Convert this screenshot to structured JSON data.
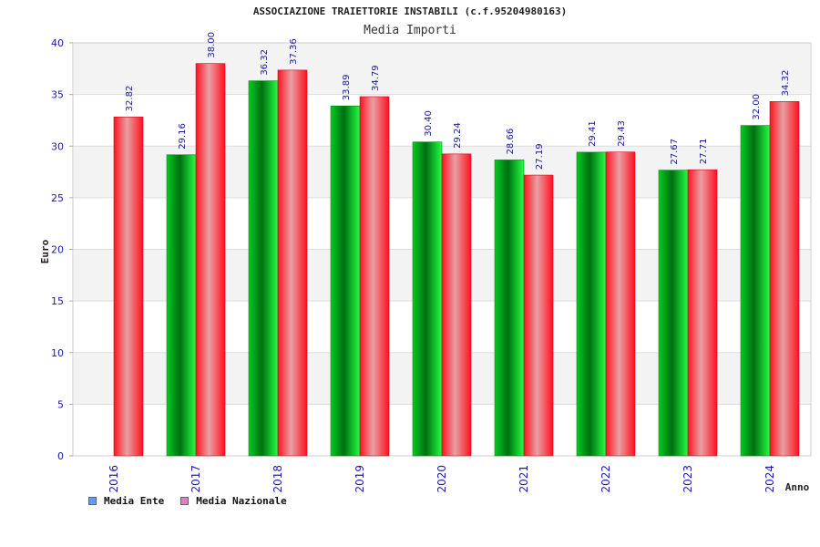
{
  "chart_data": {
    "type": "bar",
    "title": "ASSOCIAZIONE TRAIETTORIE INSTABILI (c.f.95204980163)",
    "subtitle": "Media Importi",
    "xlabel": "Anno",
    "ylabel": "Euro",
    "ylim": [
      0,
      40
    ],
    "yticks": [
      "0",
      "5",
      "10",
      "15",
      "20",
      "25",
      "30",
      "35",
      "40"
    ],
    "grid": true,
    "legend_position": "bottom-left",
    "categories": [
      "2016",
      "2017",
      "2018",
      "2019",
      "2020",
      "2021",
      "2022",
      "2023",
      "2024"
    ],
    "series": [
      {
        "name": "Media Ente",
        "color": "#00c21e",
        "legend_color": "#5fa0e8",
        "values": [
          null,
          29.16,
          36.32,
          33.89,
          30.4,
          28.66,
          29.41,
          27.67,
          32.0
        ],
        "labels": [
          "",
          "29.16",
          "36.32",
          "33.89",
          "30.40",
          "28.66",
          "29.41",
          "27.67",
          "32.00"
        ]
      },
      {
        "name": "Media Nazionale",
        "color": "#f0202a",
        "legend_color": "#e080c0",
        "values": [
          32.82,
          38.0,
          37.36,
          34.79,
          29.24,
          27.19,
          29.43,
          27.71,
          34.32
        ],
        "labels": [
          "32.82",
          "38.00",
          "37.36",
          "34.79",
          "29.24",
          "27.19",
          "29.43",
          "27.71",
          "34.32"
        ]
      }
    ]
  }
}
